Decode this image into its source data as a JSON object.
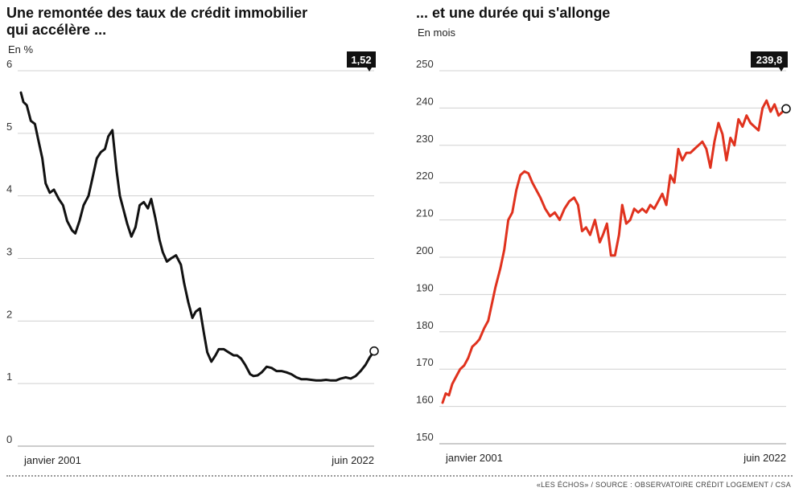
{
  "chart_data": [
    {
      "type": "line",
      "title": "Une remontée des taux de crédit immobilier qui accélère ...",
      "title_lines": [
        "Une remontée des taux de crédit immobilier",
        "qui accélère ..."
      ],
      "ylabel": "En %",
      "ylim": [
        0,
        6
      ],
      "yticks": [
        "0",
        "1",
        "2",
        "3",
        "4",
        "5",
        "6"
      ],
      "x_start_label": "janvier 2001",
      "x_end_label": "juin 2022",
      "xlim": [
        2001.0,
        2022.42
      ],
      "end_value_label": "1,52",
      "grid": true,
      "colors": {
        "line": "#111111",
        "grid": "#d0d0d0"
      },
      "x": [
        2001.0,
        2001.15,
        2001.35,
        2001.6,
        2001.85,
        2002.05,
        2002.3,
        2002.5,
        2002.75,
        2003.0,
        2003.3,
        2003.55,
        2003.8,
        2004.1,
        2004.3,
        2004.55,
        2004.8,
        2005.1,
        2005.35,
        2005.6,
        2005.85,
        2006.1,
        2006.3,
        2006.55,
        2006.8,
        2007.0,
        2007.2,
        2007.45,
        2007.7,
        2007.95,
        2008.2,
        2008.45,
        2008.7,
        2008.9,
        2009.15,
        2009.4,
        2009.6,
        2009.85,
        2010.1,
        2010.4,
        2010.7,
        2010.9,
        2011.15,
        2011.4,
        2011.6,
        2011.85,
        2012.1,
        2012.3,
        2012.55,
        2012.8,
        2013.0,
        2013.3,
        2013.6,
        2013.9,
        2014.1,
        2014.35,
        2014.6,
        2014.9,
        2015.1,
        2015.35,
        2015.6,
        2015.9,
        2016.2,
        2016.5,
        2016.8,
        2017.1,
        2017.4,
        2017.7,
        2018.0,
        2018.3,
        2018.6,
        2018.9,
        2019.2,
        2019.5,
        2019.8,
        2020.1,
        2020.4,
        2020.7,
        2021.0,
        2021.3,
        2021.6,
        2021.9,
        2022.15,
        2022.42
      ],
      "values": [
        5.65,
        5.5,
        5.45,
        5.2,
        5.15,
        4.9,
        4.6,
        4.2,
        4.05,
        4.1,
        3.95,
        3.85,
        3.6,
        3.45,
        3.4,
        3.6,
        3.85,
        4.0,
        4.3,
        4.6,
        4.7,
        4.75,
        4.95,
        5.05,
        4.4,
        4.0,
        3.8,
        3.55,
        3.35,
        3.5,
        3.85,
        3.9,
        3.8,
        3.95,
        3.65,
        3.3,
        3.1,
        2.95,
        3.0,
        3.05,
        2.9,
        2.6,
        2.3,
        2.05,
        2.15,
        2.2,
        1.8,
        1.5,
        1.35,
        1.45,
        1.55,
        1.55,
        1.5,
        1.45,
        1.45,
        1.4,
        1.3,
        1.15,
        1.12,
        1.13,
        1.18,
        1.27,
        1.25,
        1.2,
        1.2,
        1.18,
        1.15,
        1.1,
        1.07,
        1.07,
        1.06,
        1.05,
        1.05,
        1.06,
        1.05,
        1.05,
        1.08,
        1.1,
        1.08,
        1.12,
        1.2,
        1.3,
        1.42,
        1.52
      ]
    },
    {
      "type": "line",
      "title": "... et une durée qui s'allonge",
      "title_lines": [
        "... et une durée qui s'allonge"
      ],
      "ylabel": "En mois",
      "ylim": [
        150,
        250
      ],
      "yticks": [
        "150",
        "160",
        "170",
        "180",
        "190",
        "200",
        "210",
        "220",
        "230",
        "240",
        "250"
      ],
      "x_start_label": "janvier 2001",
      "x_end_label": "juin 2022",
      "xlim": [
        2001.0,
        2022.42
      ],
      "end_value_label": "239,8",
      "grid": true,
      "colors": {
        "line": "#e0321e",
        "grid": "#d0d0d0"
      },
      "x": [
        2001.0,
        2001.2,
        2001.4,
        2001.6,
        2001.85,
        2002.1,
        2002.35,
        2002.6,
        2002.85,
        2003.1,
        2003.3,
        2003.6,
        2003.85,
        2004.1,
        2004.3,
        2004.6,
        2004.85,
        2005.1,
        2005.35,
        2005.6,
        2005.85,
        2006.1,
        2006.35,
        2006.6,
        2006.85,
        2007.1,
        2007.4,
        2007.7,
        2008.0,
        2008.3,
        2008.6,
        2008.9,
        2009.2,
        2009.45,
        2009.7,
        2009.95,
        2010.2,
        2010.5,
        2010.8,
        2011.0,
        2011.25,
        2011.5,
        2011.75,
        2012.0,
        2012.2,
        2012.45,
        2012.7,
        2012.95,
        2013.2,
        2013.45,
        2013.7,
        2013.95,
        2014.2,
        2014.45,
        2014.7,
        2014.95,
        2015.2,
        2015.45,
        2015.7,
        2015.95,
        2016.2,
        2016.45,
        2016.7,
        2016.95,
        2017.2,
        2017.45,
        2017.7,
        2017.95,
        2018.2,
        2018.45,
        2018.7,
        2018.95,
        2019.2,
        2019.45,
        2019.7,
        2019.95,
        2020.2,
        2020.45,
        2020.7,
        2020.95,
        2021.2,
        2021.45,
        2021.7,
        2021.95,
        2022.2,
        2022.42
      ],
      "values": [
        161,
        163.5,
        163,
        166,
        168,
        170,
        171,
        173,
        176,
        177,
        178,
        181,
        183,
        188,
        192,
        197,
        202,
        210,
        212,
        218,
        222,
        223,
        222.5,
        220,
        218,
        216,
        213,
        211,
        212,
        210,
        213,
        215,
        216,
        214,
        207,
        208,
        206,
        210,
        204,
        206,
        209,
        200.5,
        200.5,
        206,
        214,
        209,
        210,
        213,
        212,
        213,
        212,
        214,
        213,
        215,
        217,
        214,
        222,
        220,
        229,
        226,
        228,
        228,
        229,
        230,
        231,
        229,
        224,
        231,
        236,
        233,
        226,
        232,
        230,
        237,
        235,
        238,
        236,
        235,
        234,
        240,
        242,
        239,
        241,
        238,
        239,
        239.8
      ]
    }
  ],
  "source": "«LES ÉCHOS» / SOURCE : OBSERVATOIRE CRÉDIT LOGEMENT / CSA"
}
